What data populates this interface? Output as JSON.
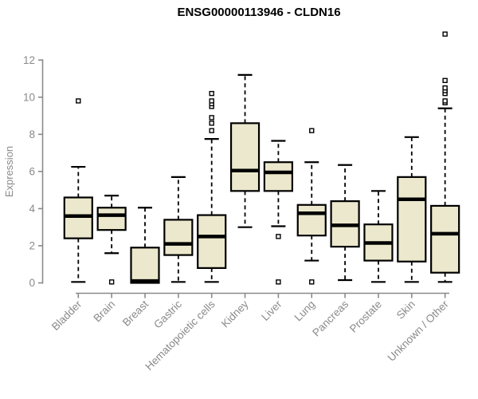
{
  "colors": {
    "box_fill": "#ECE8CD",
    "box_stroke": "#000000",
    "median_color": "#000000",
    "whisker_color": "#000000",
    "axis_color": "#8A8A8A",
    "tick_label_color": "#8A8A8A",
    "title_color": "#000000",
    "background": "#FFFFFF"
  },
  "chart_data": {
    "type": "boxplot",
    "title": "ENSG00000113946 - CLDN16",
    "ylabel": "Expression",
    "xlabel": "",
    "ylim": [
      0,
      13.5
    ],
    "yticks": [
      0,
      2,
      4,
      6,
      8,
      10,
      12
    ],
    "grid": false,
    "legend": false,
    "categories": [
      "Bladder",
      "Brain",
      "Breast",
      "Gastric",
      "Hematopoietic cells",
      "Kidney",
      "Liver",
      "Lung",
      "Pancreas",
      "Prostate",
      "Skin",
      "Unknown / Other"
    ],
    "series": [
      {
        "name": "Bladder",
        "low": 0.05,
        "q1": 2.4,
        "median": 3.6,
        "q3": 4.6,
        "high": 6.25,
        "outliers": [
          9.8
        ]
      },
      {
        "name": "Brain",
        "low": 1.6,
        "q1": 2.85,
        "median": 3.65,
        "q3": 4.05,
        "high": 4.7,
        "outliers": [
          0.05
        ]
      },
      {
        "name": "Breast",
        "low": 0.0,
        "q1": 0.0,
        "median": 0.1,
        "q3": 1.9,
        "high": 4.05,
        "outliers": []
      },
      {
        "name": "Gastric",
        "low": 0.05,
        "q1": 1.5,
        "median": 2.1,
        "q3": 3.4,
        "high": 5.7,
        "outliers": []
      },
      {
        "name": "Hematopoietic cells",
        "low": 0.05,
        "q1": 0.8,
        "median": 2.5,
        "q3": 3.65,
        "high": 7.75,
        "outliers": [
          8.2,
          8.6,
          8.9,
          9.5,
          9.65,
          9.8,
          10.2
        ]
      },
      {
        "name": "Kidney",
        "low": 3.0,
        "q1": 4.95,
        "median": 6.05,
        "q3": 8.6,
        "high": 11.2,
        "outliers": []
      },
      {
        "name": "Liver",
        "low": 3.05,
        "q1": 4.95,
        "median": 5.95,
        "q3": 6.5,
        "high": 7.65,
        "outliers": [
          2.5,
          0.05
        ]
      },
      {
        "name": "Lung",
        "low": 1.2,
        "q1": 2.55,
        "median": 3.75,
        "q3": 4.2,
        "high": 6.5,
        "outliers": [
          8.2,
          0.05
        ]
      },
      {
        "name": "Pancreas",
        "low": 0.15,
        "q1": 1.95,
        "median": 3.1,
        "q3": 4.4,
        "high": 6.35,
        "outliers": []
      },
      {
        "name": "Prostate",
        "low": 0.05,
        "q1": 1.2,
        "median": 2.15,
        "q3": 3.15,
        "high": 4.95,
        "outliers": []
      },
      {
        "name": "Skin",
        "low": 0.05,
        "q1": 1.15,
        "median": 4.5,
        "q3": 5.7,
        "high": 7.85,
        "outliers": []
      },
      {
        "name": "Unknown / Other",
        "low": 0.05,
        "q1": 0.55,
        "median": 2.65,
        "q3": 4.15,
        "high": 9.4,
        "outliers": [
          9.7,
          9.8,
          10.2,
          10.35,
          10.5,
          10.9,
          13.4
        ]
      }
    ]
  }
}
